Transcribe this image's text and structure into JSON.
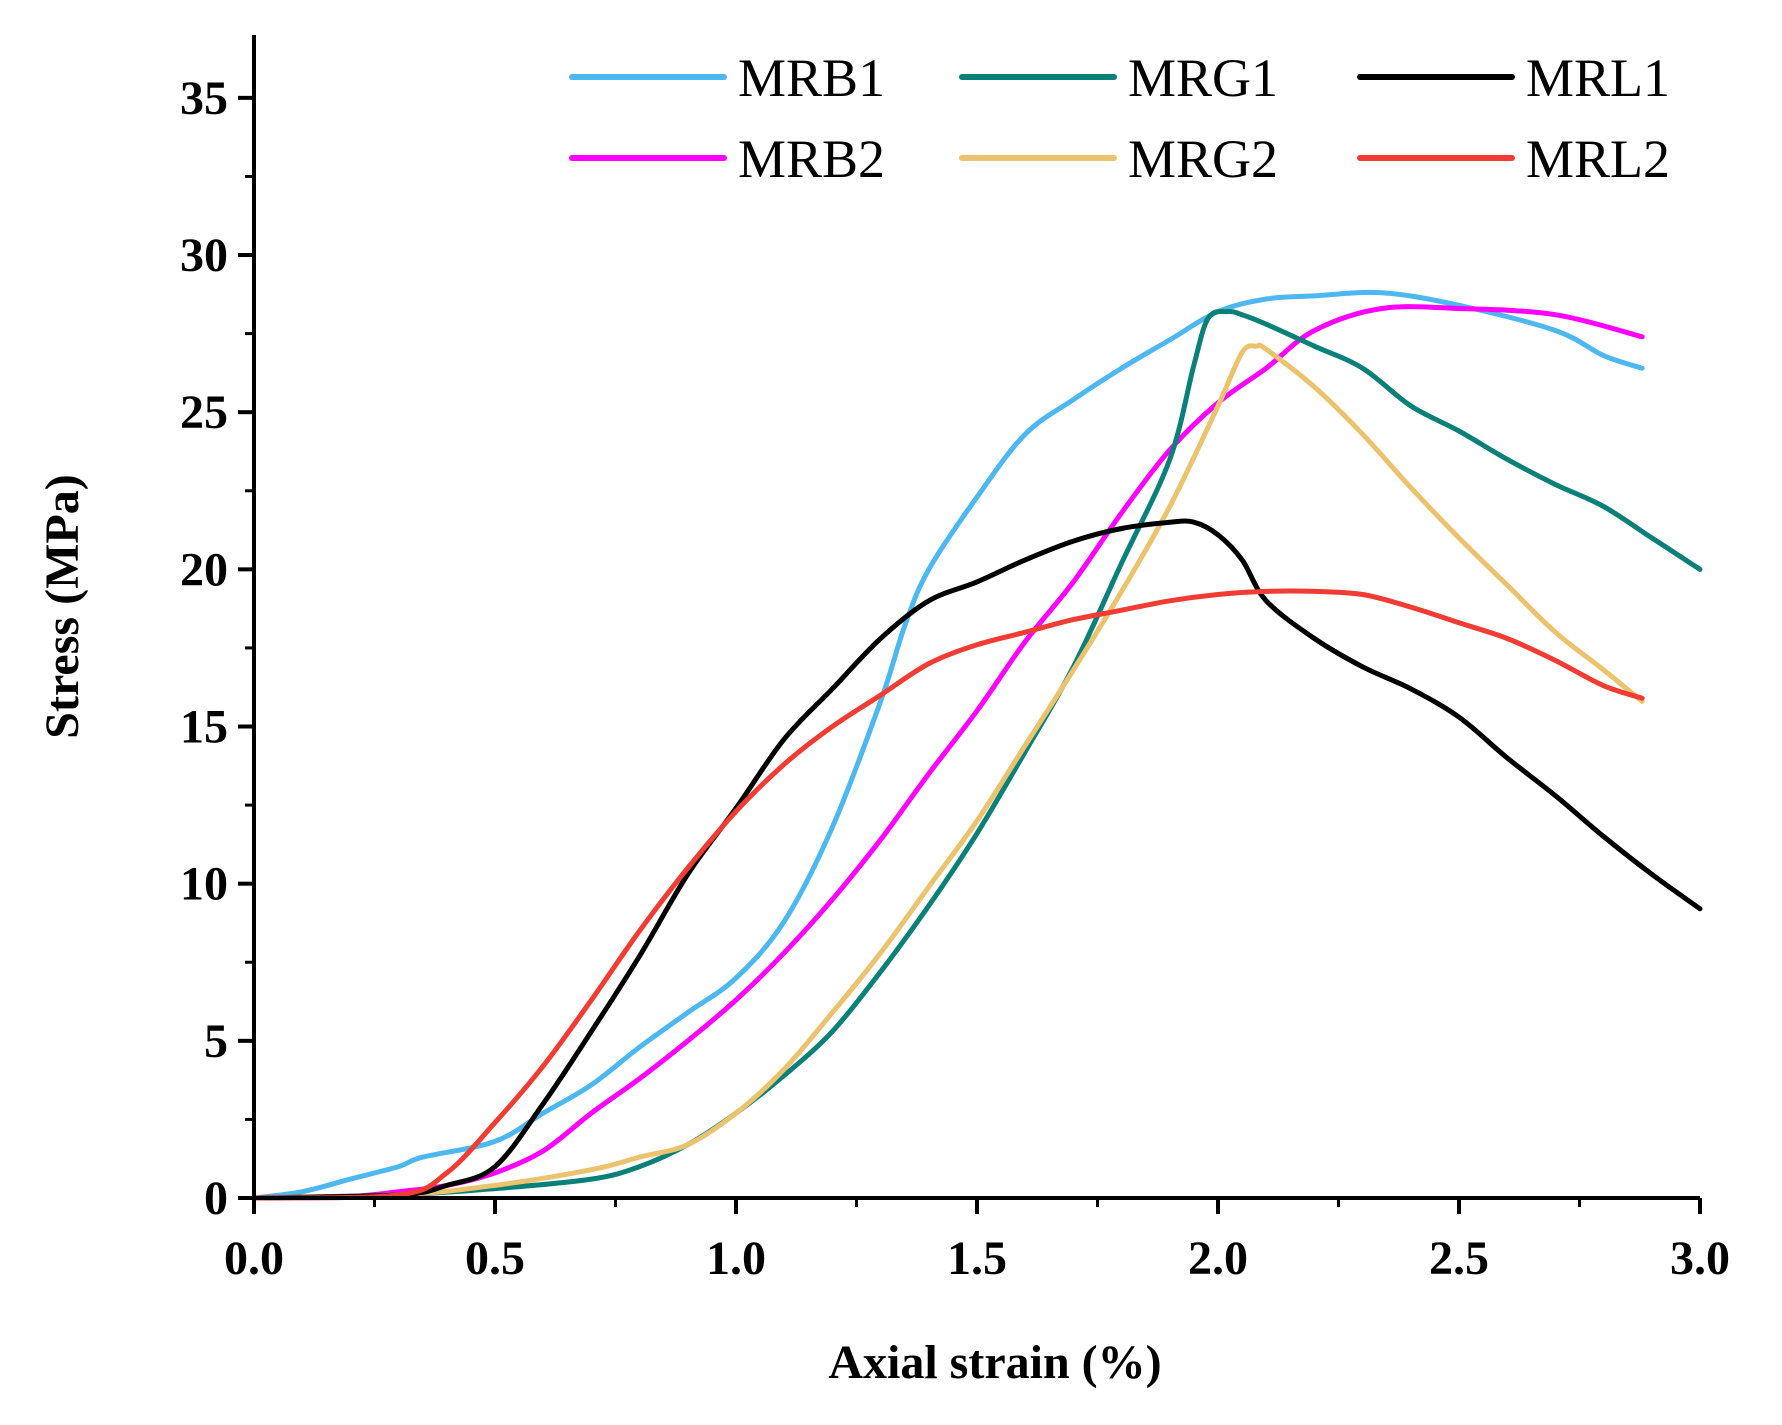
{
  "chart_data": {
    "type": "line",
    "title": "",
    "xlabel": "Axial strain (%)",
    "ylabel": "Stress (MPa)",
    "xlim": [
      0,
      3.0
    ],
    "ylim": [
      0,
      37
    ],
    "xticks": [
      0,
      0.5,
      1.0,
      1.5,
      2.0,
      2.5,
      3.0
    ],
    "xtick_labels": [
      "0.0",
      "0.5",
      "1.0",
      "1.5",
      "2.0",
      "2.5",
      "3.0"
    ],
    "yticks": [
      0,
      5,
      10,
      15,
      20,
      25,
      30,
      35
    ],
    "ytick_labels": [
      "0",
      "5",
      "10",
      "15",
      "20",
      "25",
      "30",
      "35"
    ],
    "grid": false,
    "legend_position": "top-right",
    "series": [
      {
        "name": "MRB1",
        "color": "#4DB8F0",
        "x": [
          0,
          0.1,
          0.2,
          0.3,
          0.35,
          0.5,
          0.6,
          0.7,
          0.8,
          0.9,
          1.0,
          1.1,
          1.2,
          1.3,
          1.35,
          1.4,
          1.5,
          1.6,
          1.7,
          1.8,
          1.9,
          2.0,
          2.1,
          2.2,
          2.34,
          2.5,
          2.7,
          2.8,
          2.88
        ],
        "y": [
          0,
          0.2,
          0.6,
          1.0,
          1.3,
          1.8,
          2.7,
          3.6,
          4.8,
          5.9,
          7.0,
          8.8,
          11.8,
          15.8,
          18.2,
          20.0,
          22.3,
          24.3,
          25.4,
          26.4,
          27.3,
          28.2,
          28.6,
          28.7,
          28.8,
          28.4,
          27.6,
          26.8,
          26.4
        ]
      },
      {
        "name": "MRB2",
        "color": "#FF00FF",
        "x": [
          0,
          0.2,
          0.3,
          0.4,
          0.5,
          0.6,
          0.7,
          0.8,
          0.9,
          1.0,
          1.1,
          1.2,
          1.3,
          1.4,
          1.5,
          1.6,
          1.7,
          1.8,
          1.9,
          2.0,
          2.1,
          2.2,
          2.34,
          2.5,
          2.7,
          2.88
        ],
        "y": [
          0,
          0.05,
          0.2,
          0.4,
          0.8,
          1.5,
          2.7,
          3.8,
          5.0,
          6.3,
          7.8,
          9.5,
          11.4,
          13.5,
          15.5,
          17.7,
          19.6,
          21.8,
          23.8,
          25.3,
          26.4,
          27.6,
          28.3,
          28.3,
          28.1,
          27.4
        ]
      },
      {
        "name": "MRG1",
        "color": "#0A8078",
        "x": [
          0,
          0.3,
          0.5,
          0.7,
          0.8,
          0.9,
          1.0,
          1.1,
          1.2,
          1.3,
          1.4,
          1.5,
          1.6,
          1.7,
          1.8,
          1.9,
          1.95,
          1.98,
          2.02,
          2.05,
          2.1,
          2.2,
          2.3,
          2.4,
          2.5,
          2.6,
          2.7,
          2.8,
          2.9,
          3.0
        ],
        "y": [
          0,
          0.1,
          0.3,
          0.6,
          1.0,
          1.7,
          2.7,
          3.9,
          5.3,
          7.2,
          9.3,
          11.6,
          14.2,
          16.9,
          20.2,
          23.5,
          26.5,
          28.0,
          28.2,
          28.1,
          27.8,
          27.1,
          26.4,
          25.2,
          24.4,
          23.5,
          22.7,
          22.0,
          21.0,
          20.0
        ]
      },
      {
        "name": "MRG2",
        "color": "#EBC36E",
        "x": [
          0,
          0.3,
          0.5,
          0.7,
          0.8,
          0.9,
          1.0,
          1.1,
          1.2,
          1.3,
          1.4,
          1.5,
          1.6,
          1.7,
          1.8,
          1.9,
          2.0,
          2.05,
          2.08,
          2.1,
          2.2,
          2.3,
          2.4,
          2.5,
          2.6,
          2.7,
          2.8,
          2.88
        ],
        "y": [
          0,
          0.1,
          0.4,
          0.9,
          1.3,
          1.7,
          2.7,
          4.1,
          5.9,
          7.8,
          9.9,
          12.0,
          14.4,
          16.8,
          19.3,
          22.0,
          25.2,
          26.9,
          27.1,
          27.0,
          25.8,
          24.3,
          22.6,
          21.0,
          19.5,
          18.0,
          16.8,
          15.8
        ]
      },
      {
        "name": "MRL1",
        "color": "#000000",
        "x": [
          0,
          0.3,
          0.4,
          0.5,
          0.6,
          0.7,
          0.8,
          0.9,
          1.0,
          1.1,
          1.2,
          1.3,
          1.4,
          1.5,
          1.6,
          1.7,
          1.8,
          1.9,
          1.95,
          2.0,
          2.05,
          2.1,
          2.2,
          2.3,
          2.4,
          2.5,
          2.6,
          2.7,
          2.8,
          2.9,
          3.0
        ],
        "y": [
          0,
          0.1,
          0.4,
          1.0,
          3.0,
          5.3,
          7.7,
          10.3,
          12.4,
          14.6,
          16.2,
          17.8,
          19.0,
          19.6,
          20.3,
          20.9,
          21.3,
          21.5,
          21.5,
          21.1,
          20.3,
          19.0,
          17.8,
          16.9,
          16.2,
          15.3,
          14.0,
          12.8,
          11.5,
          10.3,
          9.2
        ]
      },
      {
        "name": "MRL2",
        "color": "#F03C32",
        "x": [
          0,
          0.3,
          0.4,
          0.5,
          0.6,
          0.7,
          0.8,
          0.9,
          1.0,
          1.1,
          1.2,
          1.3,
          1.4,
          1.5,
          1.6,
          1.7,
          1.8,
          1.9,
          2.0,
          2.1,
          2.2,
          2.3,
          2.4,
          2.5,
          2.6,
          2.7,
          2.8,
          2.88
        ],
        "y": [
          0,
          0.1,
          0.8,
          2.4,
          4.2,
          6.3,
          8.5,
          10.5,
          12.3,
          13.8,
          15.0,
          16.0,
          17.0,
          17.6,
          18.0,
          18.4,
          18.7,
          19.0,
          19.2,
          19.3,
          19.3,
          19.2,
          18.8,
          18.3,
          17.8,
          17.1,
          16.3,
          15.9
        ]
      }
    ]
  }
}
